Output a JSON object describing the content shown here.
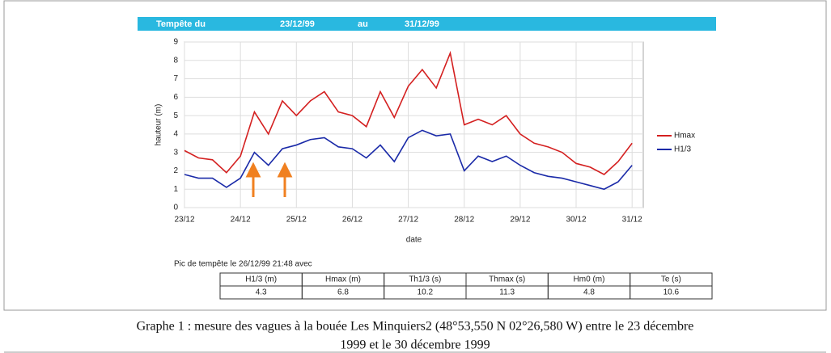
{
  "header": {
    "label": "Tempête du",
    "start": "23/12/99",
    "between": "au",
    "end": "31/12/99"
  },
  "chart_data": {
    "type": "line",
    "ylabel": "hauteur (m)",
    "xlabel": "date",
    "x": [
      0,
      0.25,
      0.5,
      0.75,
      1,
      1.25,
      1.5,
      1.75,
      2,
      2.25,
      2.5,
      2.75,
      3,
      3.25,
      3.5,
      3.75,
      4,
      4.25,
      4.5,
      4.75,
      5,
      5.25,
      5.5,
      5.75,
      6,
      6.25,
      6.5,
      6.75,
      7,
      7.25,
      7.5,
      7.75,
      8
    ],
    "series": [
      {
        "name": "Hmax",
        "color": "#d42020",
        "values": [
          3.1,
          2.7,
          2.6,
          1.9,
          2.8,
          5.2,
          4.0,
          5.8,
          5.0,
          5.8,
          6.3,
          5.2,
          5.0,
          4.4,
          6.3,
          4.9,
          6.6,
          7.5,
          6.5,
          8.4,
          4.5,
          4.8,
          4.5,
          5.0,
          4.0,
          3.5,
          3.3,
          3.0,
          2.4,
          2.2,
          1.8,
          2.5,
          3.5
        ]
      },
      {
        "name": "H1/3",
        "color": "#1a2aa8",
        "values": [
          1.8,
          1.6,
          1.6,
          1.1,
          1.6,
          3.0,
          2.3,
          3.2,
          3.4,
          3.7,
          3.8,
          3.3,
          3.2,
          2.7,
          3.4,
          2.5,
          3.8,
          4.2,
          3.9,
          4.0,
          2.0,
          2.8,
          2.5,
          2.8,
          2.3,
          1.9,
          1.7,
          1.6,
          1.4,
          1.2,
          1.0,
          1.4,
          2.3
        ]
      }
    ],
    "xlim": [
      0,
      8.2
    ],
    "xticks": [
      {
        "value": 0,
        "label": "23/12"
      },
      {
        "value": 1,
        "label": "24/12"
      },
      {
        "value": 2,
        "label": "25/12"
      },
      {
        "value": 3,
        "label": "26/12"
      },
      {
        "value": 4,
        "label": "27/12"
      },
      {
        "value": 5,
        "label": "28/12"
      },
      {
        "value": 6,
        "label": "29/12"
      },
      {
        "value": 7,
        "label": "30/12"
      },
      {
        "value": 8,
        "label": "31/12"
      }
    ],
    "ylim": [
      0,
      9
    ],
    "yticks": [
      0,
      1,
      2,
      3,
      4,
      5,
      6,
      7,
      8,
      9
    ],
    "grid": true
  },
  "peak": "Pic de tempête le 26/12/99 21:48 avec",
  "table": {
    "header": [
      "H1/3 (m)",
      "Hmax (m)",
      "Th1/3 (s)",
      "Thmax (s)",
      "Hm0 (m)",
      "Te (s)"
    ],
    "rows": [
      [
        "4.3",
        "6.8",
        "10.2",
        "11.3",
        "4.8",
        "10.6"
      ]
    ]
  },
  "caption": [
    "Graphe 1 : mesure des vagues à la bouée Les Minquiers2 (48°53,550 N 02°26,580 W) entre le 23 décembre",
    "1999 et le 30 décembre 1999"
  ]
}
